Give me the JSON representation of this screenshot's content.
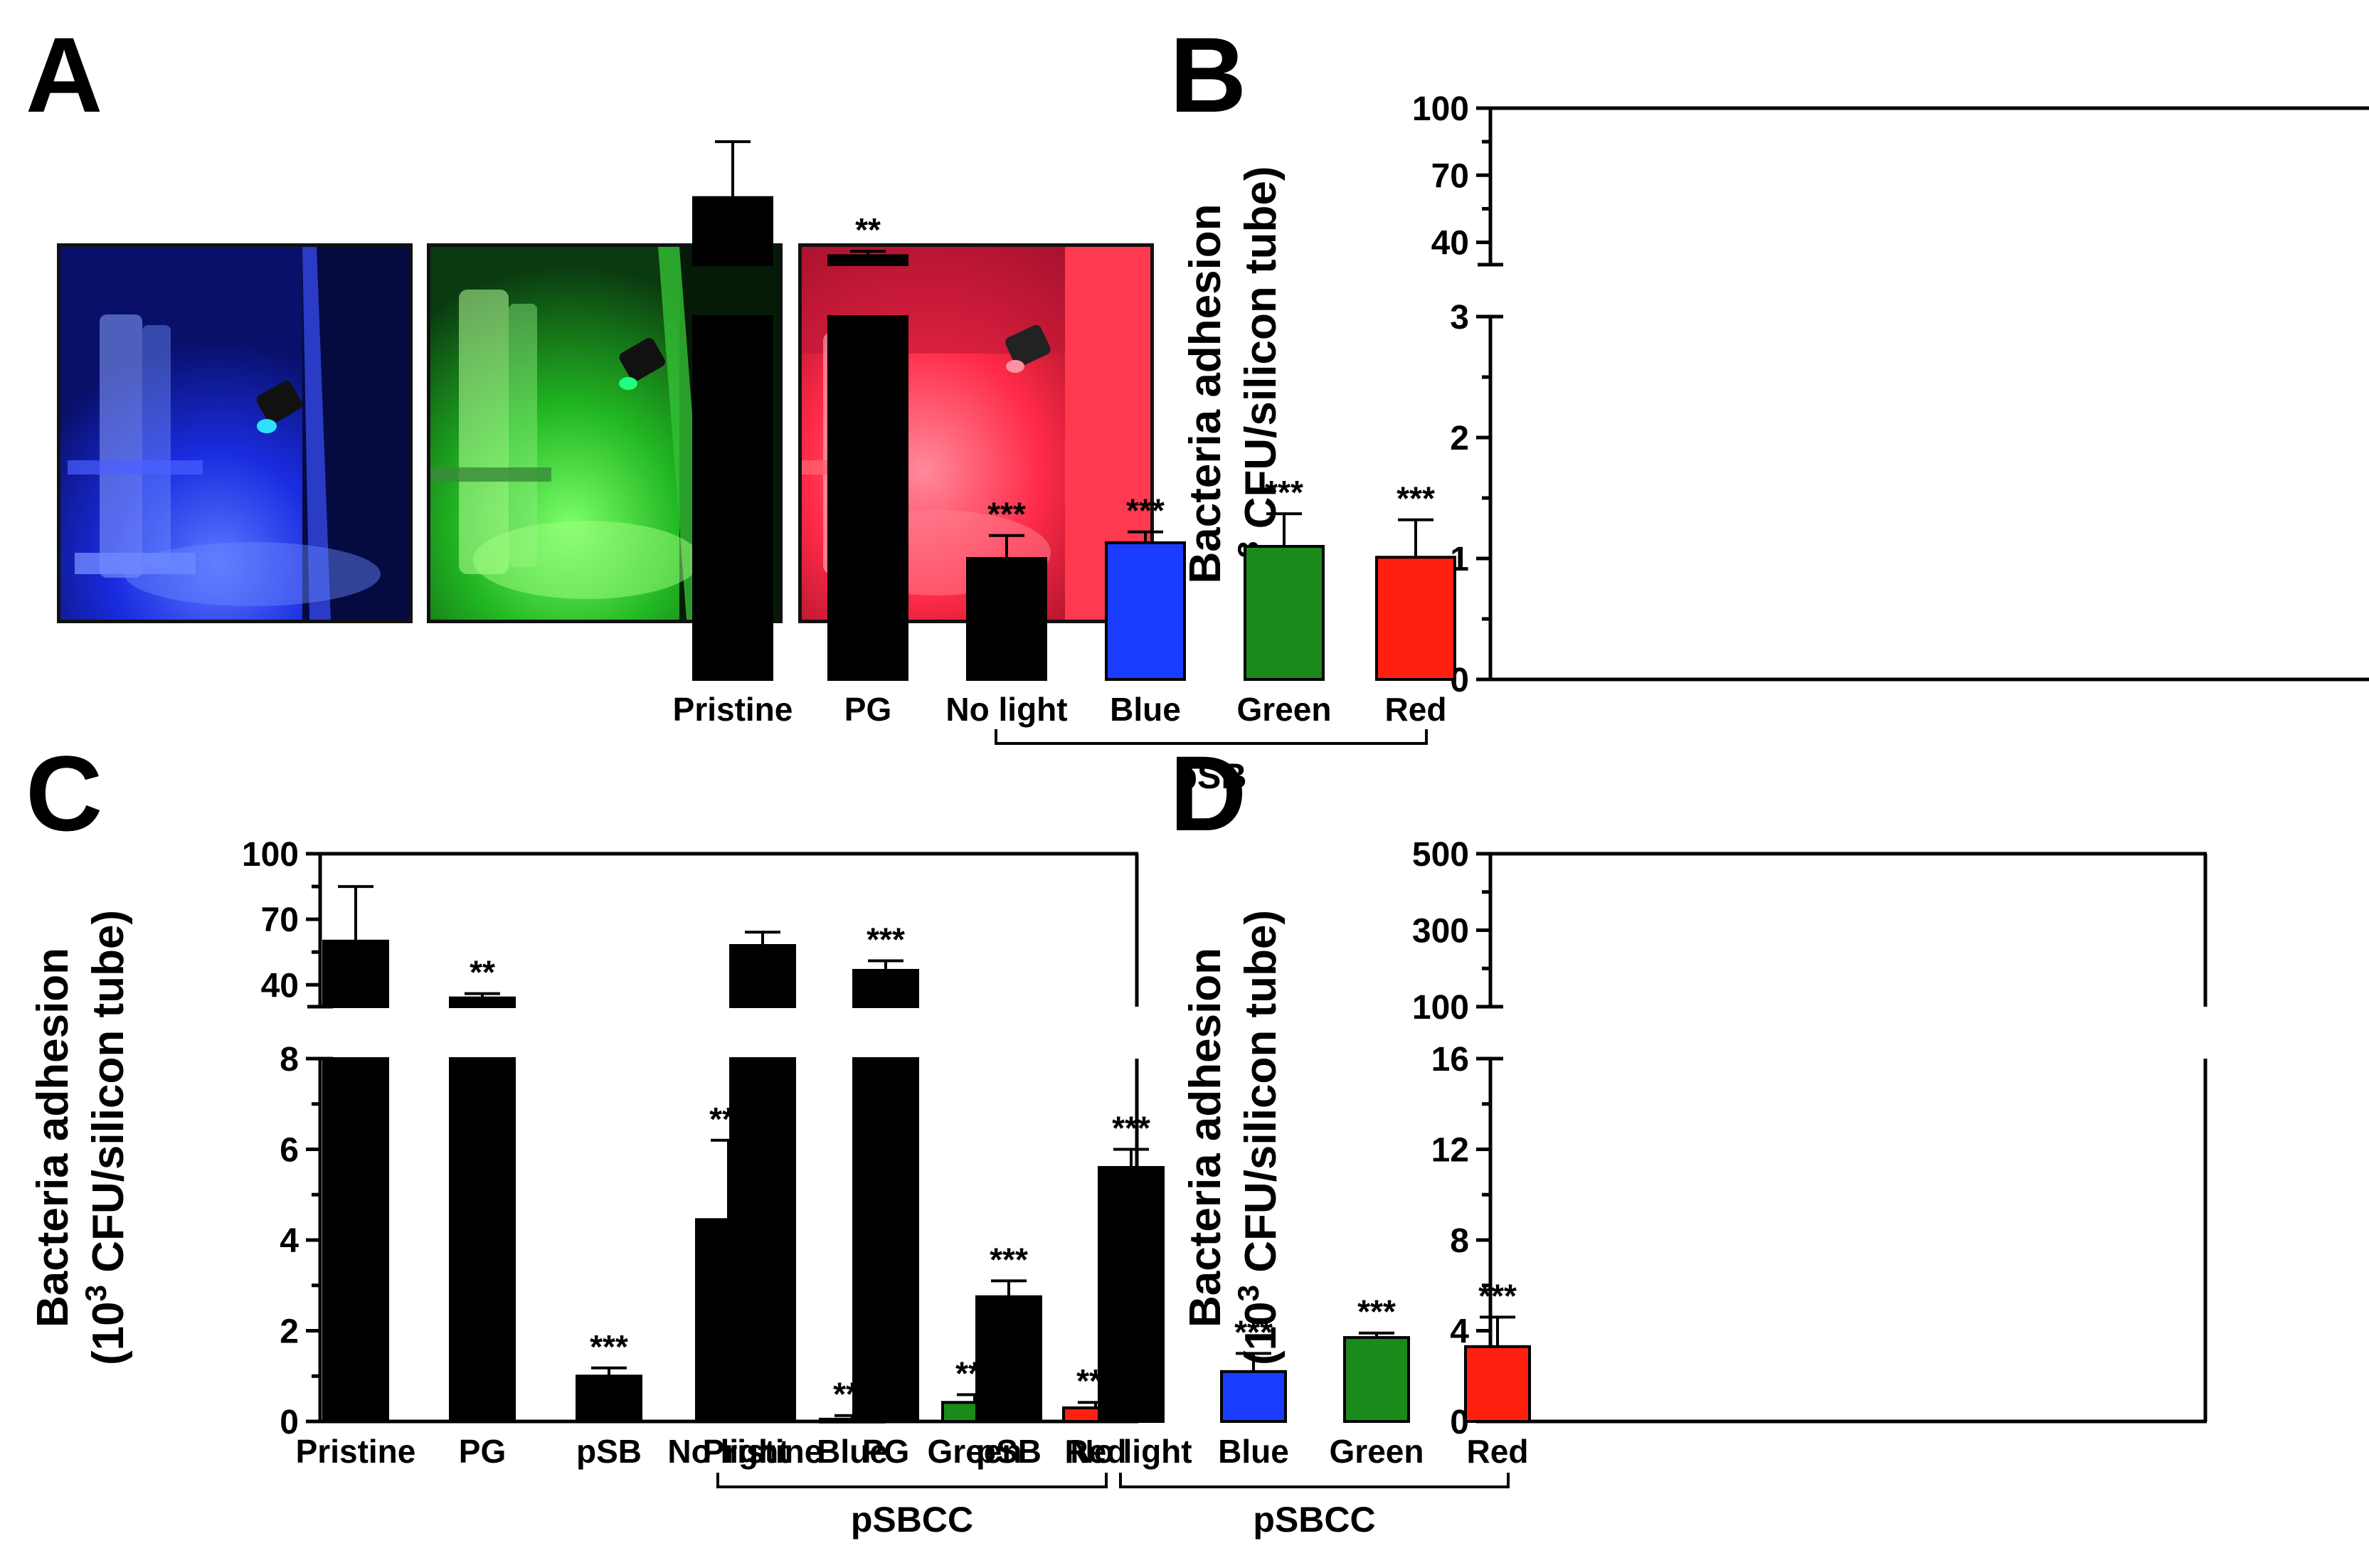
{
  "panel_labels": {
    "a": "A",
    "b": "B",
    "c": "C",
    "d": "D"
  },
  "photos": [
    {
      "name": "photo-blue-light",
      "color": "#1a2cff"
    },
    {
      "name": "photo-green-light",
      "color": "#22c030"
    },
    {
      "name": "photo-red-light",
      "color": "#ff2040"
    }
  ],
  "chart_data": [
    {
      "panel": "B",
      "type": "bar",
      "ylabel_line1": "Bacteria adhesion",
      "ylabel_line2_pre": "(10",
      "ylabel_sup": "3",
      "ylabel_line2_post": " CFU/silicon tube)",
      "ylim_lower": [
        0,
        3
      ],
      "ylim_upper": [
        30,
        100
      ],
      "yticks_lower": [
        "0",
        "1",
        "2",
        "3"
      ],
      "yticks_upper": [
        "40",
        "70",
        "100"
      ],
      "categories": [
        "Pristine",
        "PG",
        "No light",
        "Blue",
        "Green",
        "Red"
      ],
      "values": [
        60,
        34,
        1.0,
        1.13,
        1.1,
        1.01
      ],
      "errors": [
        25,
        2,
        0.19,
        0.09,
        0.27,
        0.31
      ],
      "colors": [
        "#000000",
        "#000000",
        "#000000",
        "#1a3cff",
        "#1a8a1a",
        "#ff2010"
      ],
      "significance": [
        "",
        "**",
        "***",
        "***",
        "***",
        "***"
      ],
      "group_label": "pSB",
      "group_range": [
        2,
        5
      ]
    },
    {
      "panel": "C",
      "type": "bar",
      "ylabel_line1": "Bacteria adhesion",
      "ylabel_line2_pre": "(10",
      "ylabel_sup": "3",
      "ylabel_line2_post": " CFU/silicon tube)",
      "ylim_lower": [
        0,
        8
      ],
      "ylim_upper": [
        30,
        100
      ],
      "yticks_lower": [
        "0",
        "2",
        "4",
        "6",
        "8"
      ],
      "yticks_upper": [
        "40",
        "70",
        "100"
      ],
      "categories": [
        "Pristine",
        "PG",
        "pSB",
        "No light",
        "Blue",
        "Green",
        "Red"
      ],
      "values": [
        60,
        34,
        1.0,
        4.45,
        0.05,
        0.42,
        0.3
      ],
      "errors": [
        25,
        2,
        0.18,
        1.75,
        0.08,
        0.17,
        0.12
      ],
      "colors": [
        "#000000",
        "#000000",
        "#000000",
        "#000000",
        "#1a3cff",
        "#1a8a1a",
        "#ff2010"
      ],
      "significance": [
        "",
        "**",
        "***",
        "***",
        "***",
        "***",
        "***"
      ],
      "group_label": "pSBCC",
      "group_range": [
        3,
        6
      ]
    },
    {
      "panel": "D",
      "type": "bar",
      "ylabel_line1": "Bacteria adhesion",
      "ylabel_line2_pre": "(10",
      "ylabel_sup": "3",
      "ylabel_line2_post": " CFU/silicon tube)",
      "ylim_lower": [
        0,
        16
      ],
      "ylim_upper": [
        100,
        500
      ],
      "yticks_lower": [
        "0",
        "4",
        "8",
        "12",
        "16"
      ],
      "yticks_upper": [
        "100",
        "300",
        "500"
      ],
      "categories": [
        "Pristine",
        "PG",
        "pSB",
        "No light",
        "Blue",
        "Green",
        "Red"
      ],
      "values": [
        260,
        195,
        5.5,
        11.2,
        2.2,
        3.7,
        3.3
      ],
      "errors": [
        35,
        25,
        0.7,
        0.8,
        0.8,
        0.2,
        1.3
      ],
      "colors": [
        "#000000",
        "#000000",
        "#000000",
        "#000000",
        "#1a3cff",
        "#1a8a1a",
        "#ff2010"
      ],
      "significance": [
        "",
        "***",
        "***",
        "***",
        "***",
        "***",
        "***"
      ],
      "group_label": "pSBCC",
      "group_range": [
        3,
        6
      ]
    }
  ]
}
